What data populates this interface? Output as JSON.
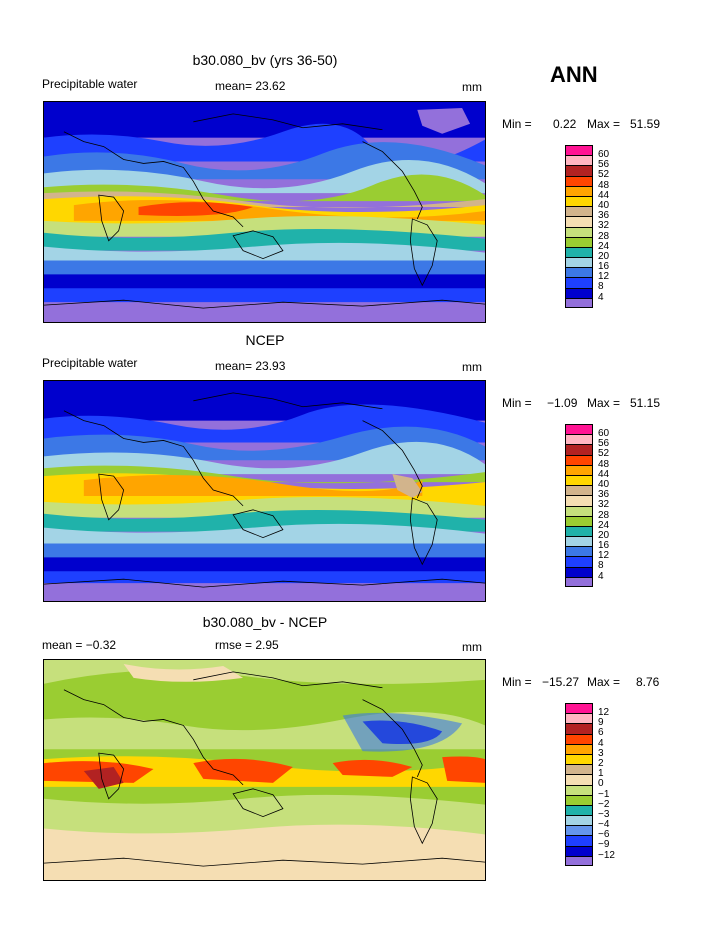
{
  "season": "ANN",
  "units": "mm",
  "colors": {
    "abs": [
      "#9370db",
      "#0000cd",
      "#1e40ff",
      "#3c78e6",
      "#a3d4e6",
      "#20b2aa",
      "#9acd32",
      "#c6e07c",
      "#f5deb3",
      "#d2b48c",
      "#ffd700",
      "#ffa500",
      "#ff4500",
      "#b22222",
      "#ffb6c1",
      "#ff1493"
    ],
    "diff": [
      "#9370db",
      "#0000cd",
      "#1e40ff",
      "#6495ed",
      "#a3d4e6",
      "#20b2aa",
      "#9acd32",
      "#c6e07c",
      "#f5deb3",
      "#d2b48c",
      "#ffd700",
      "#ffa500",
      "#ff4500",
      "#b22222",
      "#ffb6c1",
      "#ff1493"
    ]
  },
  "panels": [
    {
      "title": "b30.080_bv (yrs 36-50)",
      "left_label": "Precipitable water",
      "center_label": "mean=  23.62",
      "right_label": "mm",
      "min_label": "Min =",
      "min_value": "0.22",
      "max_label": "Max =",
      "max_value": "51.59",
      "levels": [
        "60",
        "56",
        "52",
        "48",
        "44",
        "40",
        "36",
        "32",
        "28",
        "24",
        "20",
        "16",
        "12",
        "8",
        "4"
      ],
      "palette": "abs"
    },
    {
      "title": "NCEP",
      "left_label": "Precipitable water",
      "center_label": "mean=  23.93",
      "right_label": "mm",
      "min_label": "Min =",
      "min_value": "−1.09",
      "max_label": "Max =",
      "max_value": "51.15",
      "levels": [
        "60",
        "56",
        "52",
        "48",
        "44",
        "40",
        "36",
        "32",
        "28",
        "24",
        "20",
        "16",
        "12",
        "8",
        "4"
      ],
      "palette": "abs"
    },
    {
      "title": "b30.080_bv - NCEP",
      "left_label": "mean =   −0.32",
      "center_label": "rmse =    2.95",
      "right_label": "mm",
      "min_label": "Min =",
      "min_value": "−15.27",
      "max_label": "Max =",
      "max_value": "8.76",
      "levels": [
        "12",
        "9",
        "6",
        "4",
        "3",
        "2",
        "1",
        "0",
        "−1",
        "−2",
        "−3",
        "−4",
        "−6",
        "−9",
        "−12"
      ],
      "palette": "diff"
    }
  ]
}
